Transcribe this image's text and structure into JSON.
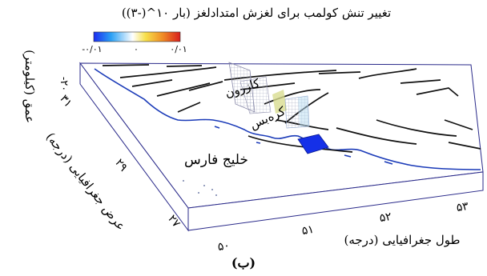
{
  "colorbar": {
    "title": "تغییر تنش کولمب برای لغزش امتدادلغز (بار ۱۰^(-۳))",
    "ticks": [
      "-۰/۰۱",
      "۰",
      "۰/۰۱"
    ],
    "colors": [
      "#1b2cf0",
      "#2aa0f5",
      "#ffffff",
      "#f7e04a",
      "#f08a24",
      "#d81e1e"
    ]
  },
  "axes": {
    "depth_label": "عمق (کیلومتر)",
    "depth_ticks": [
      "-۲۰"
    ],
    "lat_label": "عرض جغرافیایی (درجه)",
    "lat_ticks": [
      "۳۱",
      "۲۹",
      "۲۷"
    ],
    "lon_label": "طول جغرافیایی (درجه)",
    "lon_ticks": [
      "۵۰",
      "۵۱",
      "۵۲",
      "۵۳"
    ]
  },
  "places": {
    "kazerun": "کازرون",
    "kareh_bas": "کره‌بس",
    "gulf": "خلیج فارس"
  },
  "colors": {
    "coast": "#1a3ab8",
    "faults": "#111111",
    "box_edge": "#2a2a8a",
    "fault_blue": "#1530e8"
  },
  "panel_label": "(ب)"
}
